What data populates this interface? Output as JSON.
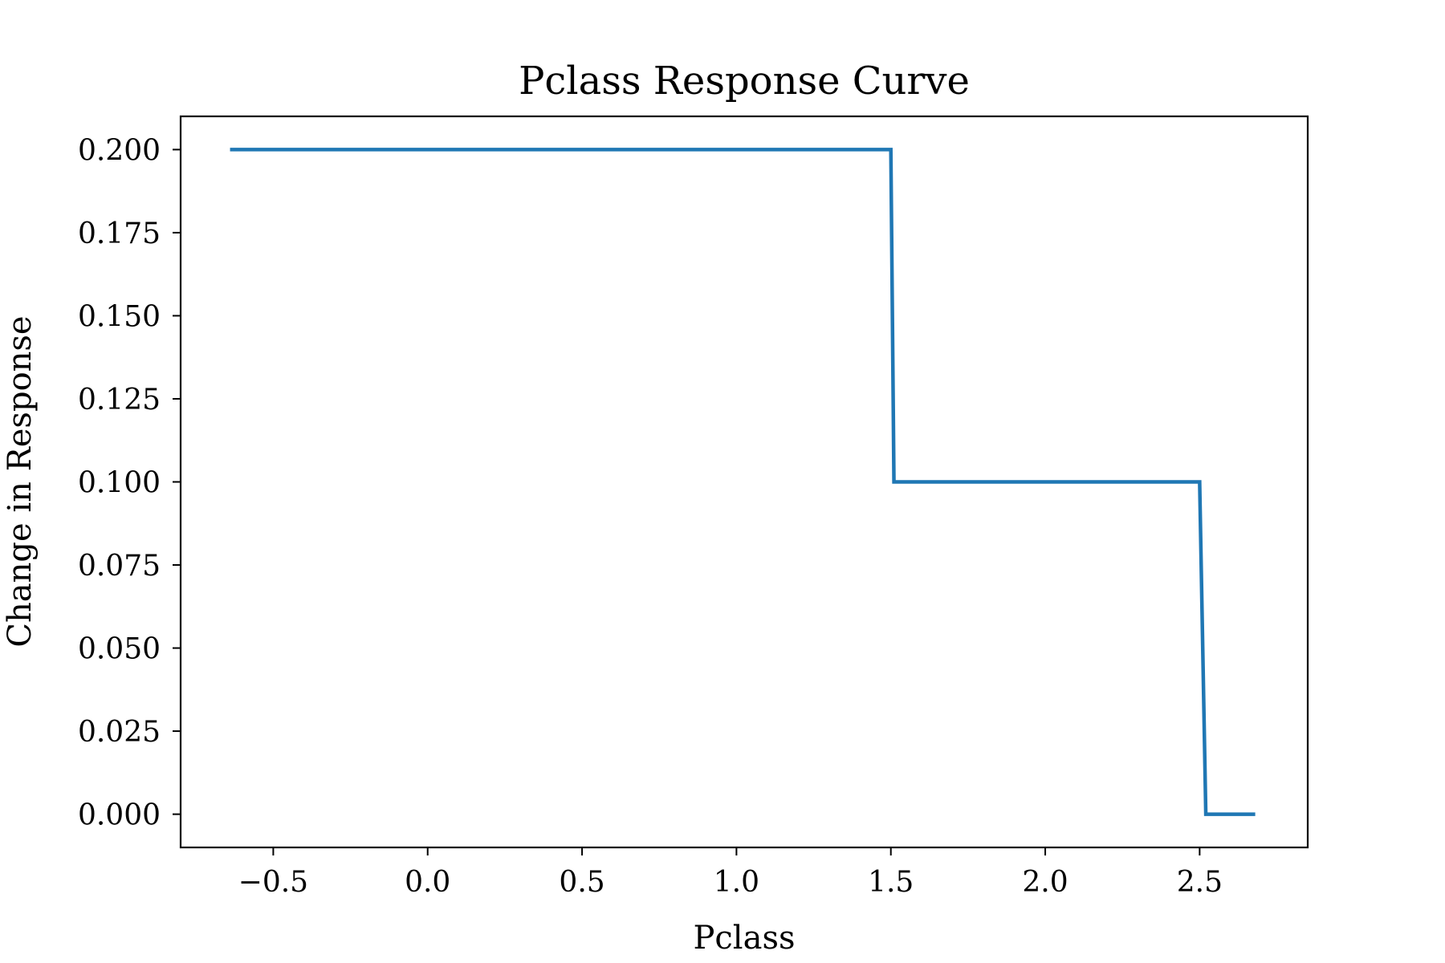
{
  "chart_data": {
    "type": "line",
    "title": "Pclass Response Curve",
    "xlabel": "Pclass",
    "ylabel": "Change in Response",
    "xlim": [
      -0.8,
      2.85
    ],
    "ylim": [
      -0.01,
      0.21
    ],
    "x_ticks": [
      -0.5,
      0.0,
      0.5,
      1.0,
      1.5,
      2.0,
      2.5
    ],
    "x_tick_labels": [
      "−0.5",
      "0.0",
      "0.5",
      "1.0",
      "1.5",
      "2.0",
      "2.5"
    ],
    "y_ticks": [
      0.0,
      0.025,
      0.05,
      0.075,
      0.1,
      0.125,
      0.15,
      0.175,
      0.2
    ],
    "y_tick_labels": [
      "0.000",
      "0.025",
      "0.050",
      "0.075",
      "0.100",
      "0.125",
      "0.150",
      "0.175",
      "0.200"
    ],
    "grid": false,
    "series": [
      {
        "color": "#1f77b4",
        "x": [
          -0.64,
          1.5,
          1.51,
          2.5,
          2.52,
          2.68
        ],
        "y": [
          0.2,
          0.2,
          0.1,
          0.1,
          0.0,
          0.0
        ]
      }
    ]
  }
}
